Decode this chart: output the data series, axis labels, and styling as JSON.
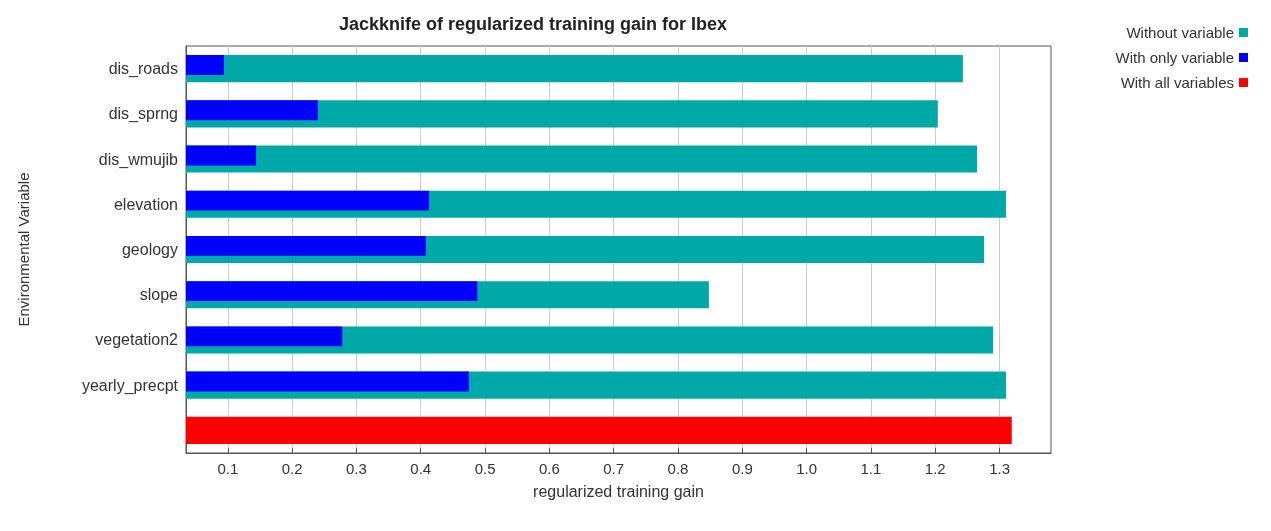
{
  "chart_data": {
    "type": "bar",
    "orientation": "horizontal",
    "title": "Jackknife of regularized training gain for Ibex",
    "xlabel": "regularized training gain",
    "ylabel": "Environmental Variable",
    "categories": [
      "dis_roads",
      "dis_sprng",
      "dis_wmujib",
      "elevation",
      "geology",
      "slope",
      "vegetation2",
      "yearly_precpt",
      null
    ],
    "series": [
      {
        "name": "Without variable",
        "color": "#00a8a8",
        "values": [
          1.243,
          1.204,
          1.265,
          1.31,
          1.276,
          0.848,
          1.29,
          1.31,
          null
        ]
      },
      {
        "name": "With only variable",
        "color": "#0000ff",
        "values": [
          0.094,
          0.24,
          0.144,
          0.413,
          0.408,
          0.488,
          0.278,
          0.475,
          null
        ]
      },
      {
        "name": "With all variables",
        "color": "#ff0000",
        "values": [
          null,
          null,
          null,
          null,
          null,
          null,
          null,
          null,
          1.319
        ]
      }
    ],
    "xlim": [
      0.035,
      1.38
    ],
    "xticks": [
      0.1,
      0.2,
      0.3,
      0.4,
      0.5,
      0.6,
      0.7,
      0.8,
      0.9,
      {
        "value": 1,
        "label": "1.0"
      },
      1.1,
      1.2,
      1.3
    ],
    "grid": "x",
    "legend": "top right"
  }
}
